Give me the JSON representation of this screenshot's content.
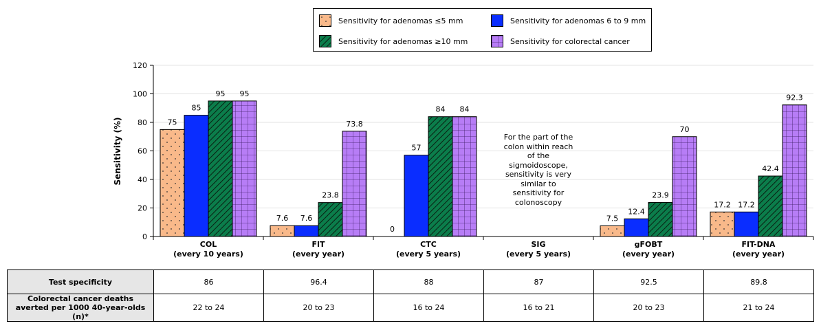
{
  "chart_data": {
    "type": "bar",
    "ylabel": "Sensitivity (%)",
    "ylim": [
      0,
      120
    ],
    "yticks": [
      0,
      20,
      40,
      60,
      80,
      100,
      120
    ],
    "grid": "horizontal",
    "legend_position": "top",
    "categories": [
      {
        "name": "COL",
        "sub": "(every 10 years)"
      },
      {
        "name": "FIT",
        "sub": "(every year)"
      },
      {
        "name": "CTC",
        "sub": "(every 5 years)"
      },
      {
        "name": "SIG",
        "sub": "(every 5 years)"
      },
      {
        "name": "gFOBT",
        "sub": "(every year)"
      },
      {
        "name": "FIT-DNA",
        "sub": "(every year)"
      }
    ],
    "series": [
      {
        "name": "Sensitivity for adenomas ≤5 mm",
        "color": "#f9b98a",
        "pattern": "dots",
        "values": [
          75,
          7.6,
          0,
          null,
          7.5,
          17.2
        ],
        "labels": [
          "75",
          "7.6",
          "0",
          "",
          "7.5",
          "17.2"
        ]
      },
      {
        "name": "Sensitivity for adenomas 6 to 9 mm",
        "color": "#0a2dff",
        "pattern": "solid",
        "values": [
          85,
          7.6,
          57,
          null,
          12.4,
          17.2
        ],
        "labels": [
          "85",
          "7.6",
          "57",
          "",
          "12.4",
          "17.2"
        ]
      },
      {
        "name": "Sensitivity for adenomas ≥10 mm",
        "color": "#0b7d4b",
        "pattern": "diagonal",
        "values": [
          95,
          23.8,
          84,
          null,
          23.9,
          42.4
        ],
        "labels": [
          "95",
          "23.8",
          "84",
          "",
          "23.9",
          "42.4"
        ]
      },
      {
        "name": "Sensitivity for colorectal cancer",
        "color": "#b77df6",
        "pattern": "grid",
        "values": [
          95,
          73.8,
          84,
          null,
          70,
          92.3
        ],
        "labels": [
          "95",
          "73.8",
          "84",
          "",
          "70",
          "92.3"
        ]
      }
    ],
    "annotation": "For the part of the colon within reach of the sigmoidoscope, sensitivity is very similar to sensitivity for colonoscopy"
  },
  "table": {
    "rows": [
      {
        "label": "Test specificity",
        "values": [
          "86",
          "96.4",
          "88",
          "87",
          "92.5",
          "89.8"
        ]
      },
      {
        "label": "Colorectal cancer deaths averted per 1000 40-year-olds (n)*",
        "values": [
          "22 to 24",
          "20 to 23",
          "16 to 24",
          "16 to 21",
          "20 to 23",
          "21 to 24"
        ]
      }
    ]
  }
}
